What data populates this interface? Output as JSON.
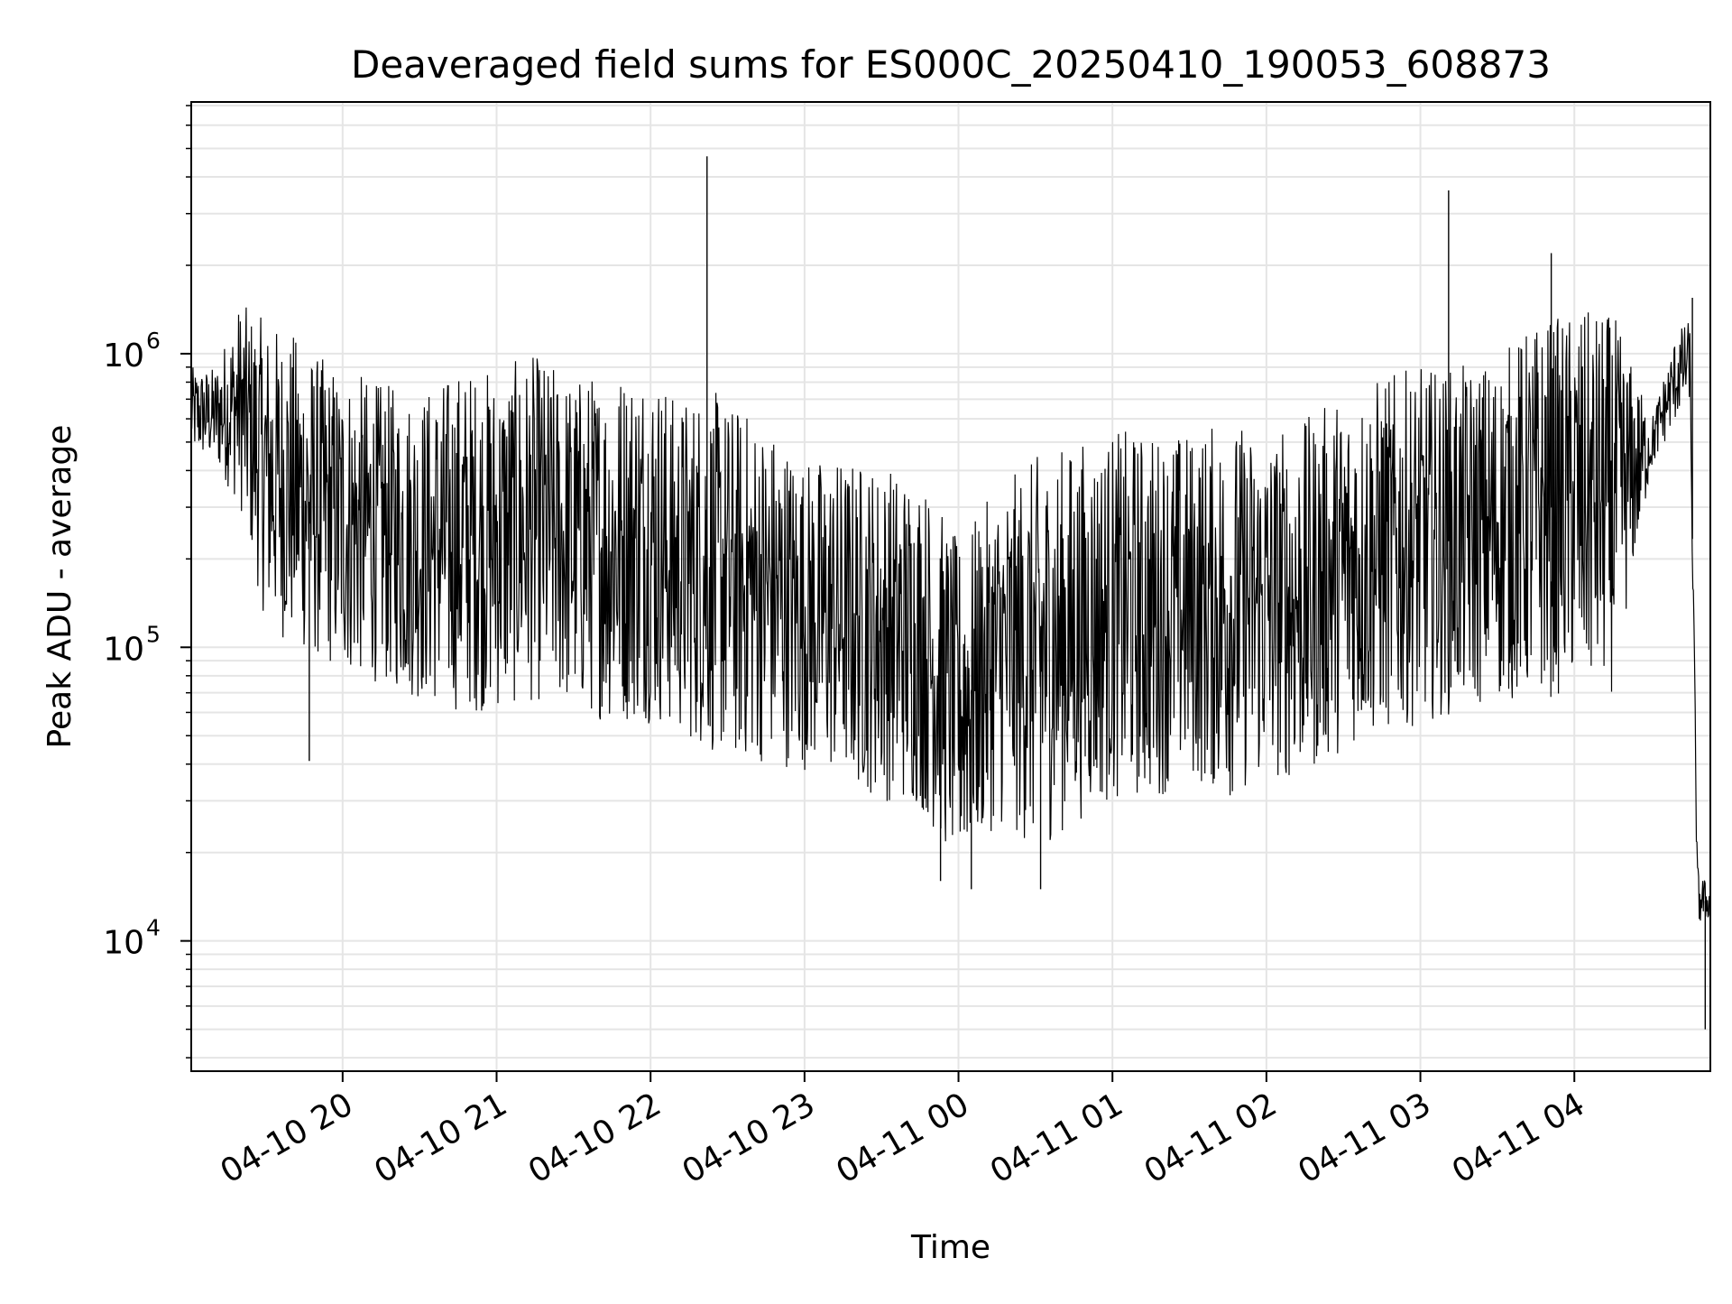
{
  "chart_data": {
    "type": "line",
    "title": "Deaveraged field sums for ES000C_20250410_190053_608873",
    "xlabel": "Time",
    "ylabel": "Peak ADU - average",
    "y_scale": "log",
    "ylim": [
      3600,
      7200000
    ],
    "xlim": [
      "2025-04-10 19:01",
      "2025-04-11 04:53"
    ],
    "grid": true,
    "line_color": "#000000",
    "grid_color": "#e5e5e5",
    "x_ticks": [
      {
        "value": "2025-04-10 20:00",
        "label": "04-10 20"
      },
      {
        "value": "2025-04-10 21:00",
        "label": "04-10 21"
      },
      {
        "value": "2025-04-10 22:00",
        "label": "04-10 22"
      },
      {
        "value": "2025-04-10 23:00",
        "label": "04-10 23"
      },
      {
        "value": "2025-04-11 00:00",
        "label": "04-11 00"
      },
      {
        "value": "2025-04-11 01:00",
        "label": "04-11 01"
      },
      {
        "value": "2025-04-11 02:00",
        "label": "04-11 02"
      },
      {
        "value": "2025-04-11 03:00",
        "label": "04-11 03"
      },
      {
        "value": "2025-04-11 04:00",
        "label": "04-11 04"
      }
    ],
    "y_ticks": [
      {
        "value": 10000,
        "base": "10",
        "exp": "4"
      },
      {
        "value": 100000,
        "base": "10",
        "exp": "5"
      },
      {
        "value": 1000000,
        "base": "10",
        "exp": "6"
      }
    ],
    "series": [
      {
        "envelope": {
          "x": [
            "2025-04-10 19:01",
            "2025-04-10 19:10",
            "2025-04-10 19:20",
            "2025-04-10 19:30",
            "2025-04-10 19:40",
            "2025-04-10 19:50",
            "2025-04-10 20:00",
            "2025-04-10 20:15",
            "2025-04-10 20:30",
            "2025-04-10 20:45",
            "2025-04-10 21:00",
            "2025-04-10 21:15",
            "2025-04-10 21:30",
            "2025-04-10 21:45",
            "2025-04-10 22:00",
            "2025-04-10 22:10",
            "2025-04-10 22:20",
            "2025-04-10 22:30",
            "2025-04-10 22:45",
            "2025-04-10 23:00",
            "2025-04-10 23:15",
            "2025-04-10 23:30",
            "2025-04-10 23:45",
            "2025-04-11 00:00",
            "2025-04-11 00:15",
            "2025-04-11 00:30",
            "2025-04-11 00:45",
            "2025-04-11 01:00",
            "2025-04-11 01:15",
            "2025-04-11 01:30",
            "2025-04-11 01:45",
            "2025-04-11 02:00",
            "2025-04-11 02:15",
            "2025-04-11 02:30",
            "2025-04-11 02:45",
            "2025-04-11 03:00",
            "2025-04-11 03:15",
            "2025-04-11 03:30",
            "2025-04-11 03:45",
            "2025-04-11 04:00",
            "2025-04-11 04:15",
            "2025-04-11 04:30",
            "2025-04-11 04:40",
            "2025-04-11 04:45",
            "2025-04-11 04:48",
            "2025-04-11 04:53"
          ],
          "high": [
            900000,
            900000,
            1500000,
            1300000,
            1200000,
            1000000,
            900000,
            800000,
            750000,
            900000,
            900000,
            1000000,
            850000,
            900000,
            1000000,
            700000,
            800000,
            700000,
            600000,
            450000,
            450000,
            430000,
            400000,
            230000,
            350000,
            450000,
            500000,
            550000,
            550000,
            550000,
            600000,
            550000,
            600000,
            750000,
            850000,
            900000,
            900000,
            1000000,
            1300000,
            1400000,
            1400000,
            600000,
            1200000,
            1300000,
            18000,
            15000
          ],
          "low": [
            450000,
            420000,
            300000,
            120000,
            100000,
            90000,
            80000,
            75000,
            65000,
            60000,
            60000,
            65000,
            60000,
            55000,
            55000,
            50000,
            45000,
            40000,
            40000,
            38000,
            35000,
            30000,
            28000,
            17000,
            25000,
            20000,
            25000,
            30000,
            30000,
            35000,
            30000,
            35000,
            35000,
            45000,
            50000,
            55000,
            60000,
            65000,
            65000,
            70000,
            70000,
            400000,
            600000,
            700000,
            11000,
            12000
          ]
        },
        "spikes": [
          {
            "x": "2025-04-10 19:47",
            "y": 41000
          },
          {
            "x": "2025-04-10 22:22",
            "y": 4700000
          },
          {
            "x": "2025-04-10 23:53",
            "y": 16000
          },
          {
            "x": "2025-04-11 00:05",
            "y": 15000
          },
          {
            "x": "2025-04-11 00:32",
            "y": 15000
          },
          {
            "x": "2025-04-11 03:11",
            "y": 3600000
          },
          {
            "x": "2025-04-11 03:51",
            "y": 2200000
          },
          {
            "x": "2025-04-11 04:51",
            "y": 5000
          },
          {
            "x": "2025-04-11 04:46",
            "y": 1550000
          }
        ]
      }
    ]
  }
}
